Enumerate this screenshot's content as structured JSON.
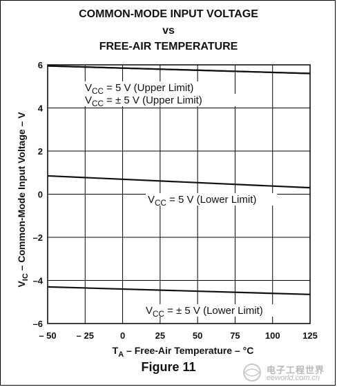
{
  "title_lines": [
    "COMMON-MODE INPUT VOLTAGE",
    "vs",
    "FREE-AIR TEMPERATURE"
  ],
  "figure_label": "Figure 11",
  "watermark": {
    "title": "电子工程世界",
    "subtitle": "eeworld.com.cn"
  },
  "chart_data": {
    "type": "line",
    "xlabel": "TA – Free-Air Temperature – °C",
    "ylabel": "VIC – Common-Mode Input Voltage – V",
    "xlim": [
      -50,
      125
    ],
    "ylim": [
      -6,
      6
    ],
    "x_ticks": [
      "– 50",
      "– 25",
      "0",
      "25",
      "50",
      "75",
      "100",
      "125"
    ],
    "x_tick_values": [
      -50,
      -25,
      0,
      25,
      50,
      75,
      100,
      125
    ],
    "y_ticks": [
      "6",
      "4",
      "2",
      "0",
      "–2",
      "–4",
      "–6"
    ],
    "y_tick_values": [
      6,
      4,
      2,
      0,
      -2,
      -4,
      -6
    ],
    "grid": true,
    "series": [
      {
        "name": "VCC = 5 V (Upper Limit)",
        "x": [
          -50,
          125
        ],
        "y": [
          5.95,
          5.6
        ]
      },
      {
        "name": "VCC = ± 5 V (Upper Limit)",
        "x": [
          -50,
          125
        ],
        "y": [
          5.95,
          5.6
        ]
      },
      {
        "name": "VCC = 5 V (Lower Limit)",
        "x": [
          -50,
          125
        ],
        "y": [
          0.85,
          0.3
        ]
      },
      {
        "name": "VCC = ± 5 V (Lower Limit)",
        "x": [
          -50,
          125
        ],
        "y": [
          -4.3,
          -4.65
        ]
      }
    ],
    "annotations": [
      {
        "pre": "V",
        "sub": "CC",
        "post": " = 5 V (Upper Limit)"
      },
      {
        "pre": "V",
        "sub": "CC",
        "post": " = ± 5 V (Upper Limit)"
      },
      {
        "pre": "V",
        "sub": "CC",
        "post": " = 5 V (Lower Limit)"
      },
      {
        "pre": "V",
        "sub": "CC",
        "post": " = ± 5 V (Lower Limit)"
      }
    ],
    "xlabel_parts": {
      "pre": "T",
      "sub": "A",
      "post": " – Free-Air Temperature – °C"
    },
    "ylabel_parts": {
      "pre": "V",
      "sub": "IC",
      "post": " – Common-Mode Input Voltage – V"
    }
  }
}
